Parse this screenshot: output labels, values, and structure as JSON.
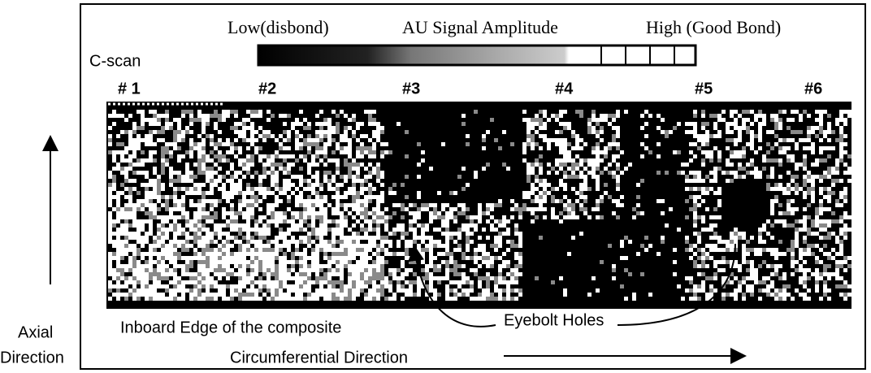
{
  "legend": {
    "low": "Low(disbond)",
    "title": "AU Signal Amplitude",
    "high": "High (Good Bond)"
  },
  "scan": {
    "label": "C-scan",
    "markers": [
      "# 1",
      "#2",
      "#3",
      "#4",
      "#5",
      "#6"
    ],
    "edge_label": "Inboard Edge of the composite",
    "holes_label": "Eyebolt Holes"
  },
  "axes": {
    "axial": [
      "Axial",
      "Direction"
    ],
    "circumferential": "Circumferential Direction"
  }
}
